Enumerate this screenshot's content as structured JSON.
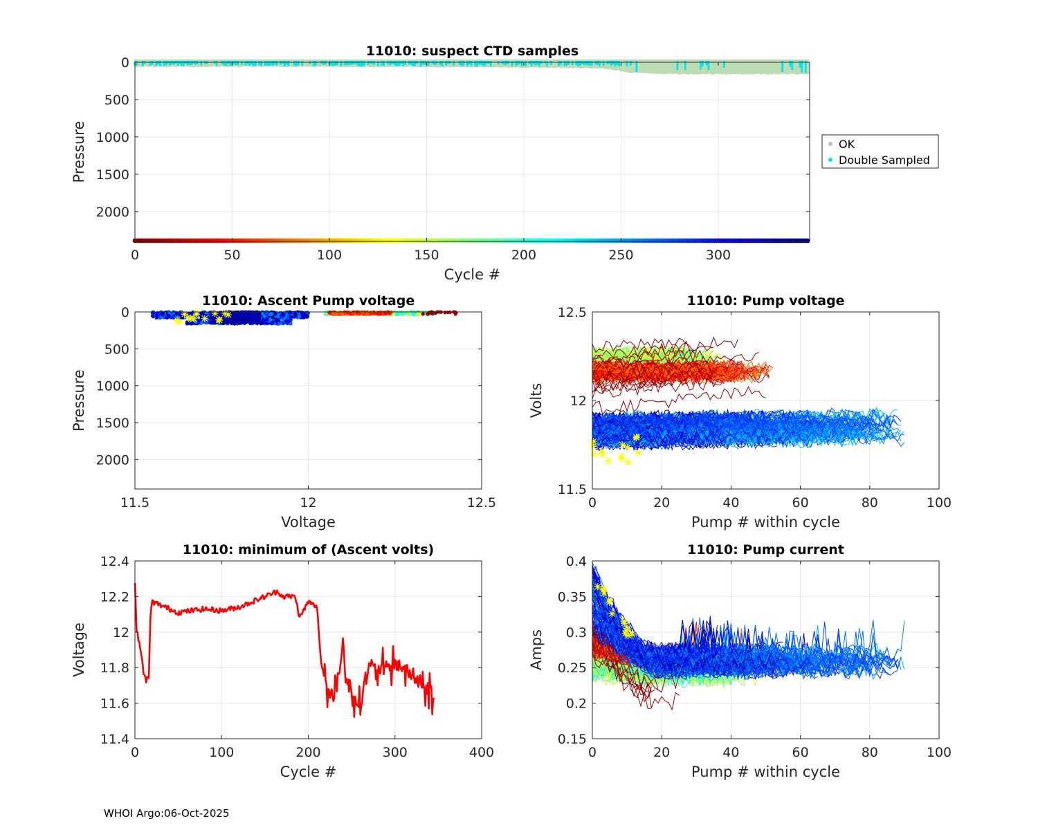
{
  "footer": "WHOI Argo:06-Oct-2025",
  "chart_data": [
    {
      "id": "p1",
      "type": "scatter",
      "title": "11010: suspect CTD samples",
      "xlabel": "Cycle #",
      "ylabel": "Pressure",
      "xlim": [
        0,
        347
      ],
      "ylim": [
        0,
        2400
      ],
      "y_reversed": true,
      "xticks": [
        0,
        50,
        100,
        150,
        200,
        250,
        300
      ],
      "yticks": [
        0,
        500,
        1000,
        1500,
        2000
      ],
      "grid": true,
      "legend": {
        "placement": "outside-right",
        "entries": [
          {
            "label": "OK",
            "color": "#bdbdbd"
          },
          {
            "label": "Double Sampled",
            "color": "#00e5ee"
          }
        ]
      },
      "ok_depth_profile": [
        {
          "cycle": 0,
          "max_pressure": 60
        },
        {
          "cycle": 100,
          "max_pressure": 60
        },
        {
          "cycle": 200,
          "max_pressure": 70
        },
        {
          "cycle": 240,
          "max_pressure": 80
        },
        {
          "cycle": 255,
          "max_pressure": 140
        },
        {
          "cycle": 275,
          "max_pressure": 160
        },
        {
          "cycle": 347,
          "max_pressure": 160
        }
      ],
      "double_sampled_max_pressure": 70,
      "cycle_color_strip_pressure": 2400
    },
    {
      "id": "p2",
      "type": "scatter",
      "title": "11010: Ascent Pump voltage",
      "xlabel": "Voltage",
      "ylabel": "Pressure",
      "xlim": [
        11.5,
        12.5
      ],
      "ylim": [
        0,
        2400
      ],
      "y_reversed": true,
      "xticks": [
        11.5,
        12,
        12.5
      ],
      "xtick_labels": [
        "11.5",
        "12",
        "12.5"
      ],
      "yticks": [
        0,
        500,
        1000,
        1500,
        2000
      ],
      "grid": true,
      "clusters": [
        {
          "voltage_range": [
            11.55,
            12.0
          ],
          "pressure_range": [
            0,
            160
          ],
          "color_group": "late cycles (blue)"
        },
        {
          "voltage_range": [
            12.05,
            12.35
          ],
          "pressure_range": [
            0,
            40
          ],
          "color_group": "mid cycles (cyan/green)"
        },
        {
          "voltage_range": [
            12.1,
            12.43
          ],
          "pressure_range": [
            0,
            40
          ],
          "color_group": "early cycles (red)"
        }
      ],
      "markers": {
        "label": "yellow star",
        "voltage_range": [
          11.62,
          11.78
        ],
        "pressure_range": [
          0,
          150
        ]
      }
    },
    {
      "id": "p3",
      "type": "line",
      "title": "11010: Pump voltage",
      "xlabel": "Pump # within cycle",
      "ylabel": "Volts",
      "xlim": [
        0,
        100
      ],
      "ylim": [
        11.5,
        12.5
      ],
      "xticks": [
        0,
        20,
        40,
        60,
        80,
        100
      ],
      "yticks": [
        11.5,
        12,
        12.5
      ],
      "ytick_labels": [
        "11.5",
        "12",
        "12.5"
      ],
      "grid": true,
      "bands": [
        {
          "group": "early cycles",
          "volts_center": 12.15,
          "pump_max": 53
        },
        {
          "group": "mid cycles",
          "volts_center": 12.22,
          "pump_max": 40
        },
        {
          "group": "late cycles",
          "volts_center": 11.8,
          "pump_max": 91
        }
      ]
    },
    {
      "id": "p4",
      "type": "line",
      "title": "11010: minimum of (Ascent volts)",
      "xlabel": "Cycle #",
      "ylabel": "Voltage",
      "xlim": [
        0,
        400
      ],
      "ylim": [
        11.4,
        12.4
      ],
      "xticks": [
        0,
        100,
        200,
        300,
        400
      ],
      "yticks": [
        11.4,
        11.6,
        11.8,
        12,
        12.2,
        12.4
      ],
      "ytick_labels": [
        "11.4",
        "11.6",
        "11.8",
        "12",
        "12.2",
        "12.4"
      ],
      "grid": true,
      "series": [
        {
          "name": "minimum ascent volts",
          "color": "#ff0000",
          "x": [
            0,
            2,
            5,
            10,
            13,
            16,
            18,
            20,
            30,
            50,
            80,
            100,
            120,
            140,
            150,
            160,
            165,
            170,
            185,
            190,
            200,
            210,
            213,
            215,
            220,
            225,
            230,
            235,
            240,
            243,
            250,
            260,
            265,
            270,
            280,
            290,
            300,
            310,
            320,
            330,
            340,
            345
          ],
          "y": [
            12.27,
            12.0,
            11.95,
            11.77,
            11.73,
            11.74,
            12.1,
            12.17,
            12.15,
            12.11,
            12.13,
            12.12,
            12.14,
            12.18,
            12.2,
            12.22,
            12.23,
            12.2,
            12.2,
            12.08,
            12.17,
            12.14,
            11.95,
            11.82,
            11.72,
            11.66,
            11.62,
            11.75,
            11.96,
            11.73,
            11.67,
            11.57,
            11.73,
            11.8,
            11.79,
            11.8,
            11.82,
            11.8,
            11.75,
            11.7,
            11.68,
            11.63
          ]
        }
      ]
    },
    {
      "id": "p5",
      "type": "line",
      "title": "11010: Pump current",
      "xlabel": "Pump # within cycle",
      "ylabel": "Amps",
      "xlim": [
        0,
        100
      ],
      "ylim": [
        0.15,
        0.4
      ],
      "xticks": [
        0,
        20,
        40,
        60,
        80,
        100
      ],
      "yticks": [
        0.15,
        0.2,
        0.25,
        0.3,
        0.35,
        0.4
      ],
      "ytick_labels": [
        "0.15",
        "0.2",
        "0.25",
        "0.3",
        "0.35",
        "0.4"
      ],
      "grid": true,
      "bands": [
        {
          "group": "all cycles",
          "amps_start": 0.35,
          "amps_end": 0.245,
          "pump_max": 91
        }
      ]
    }
  ]
}
